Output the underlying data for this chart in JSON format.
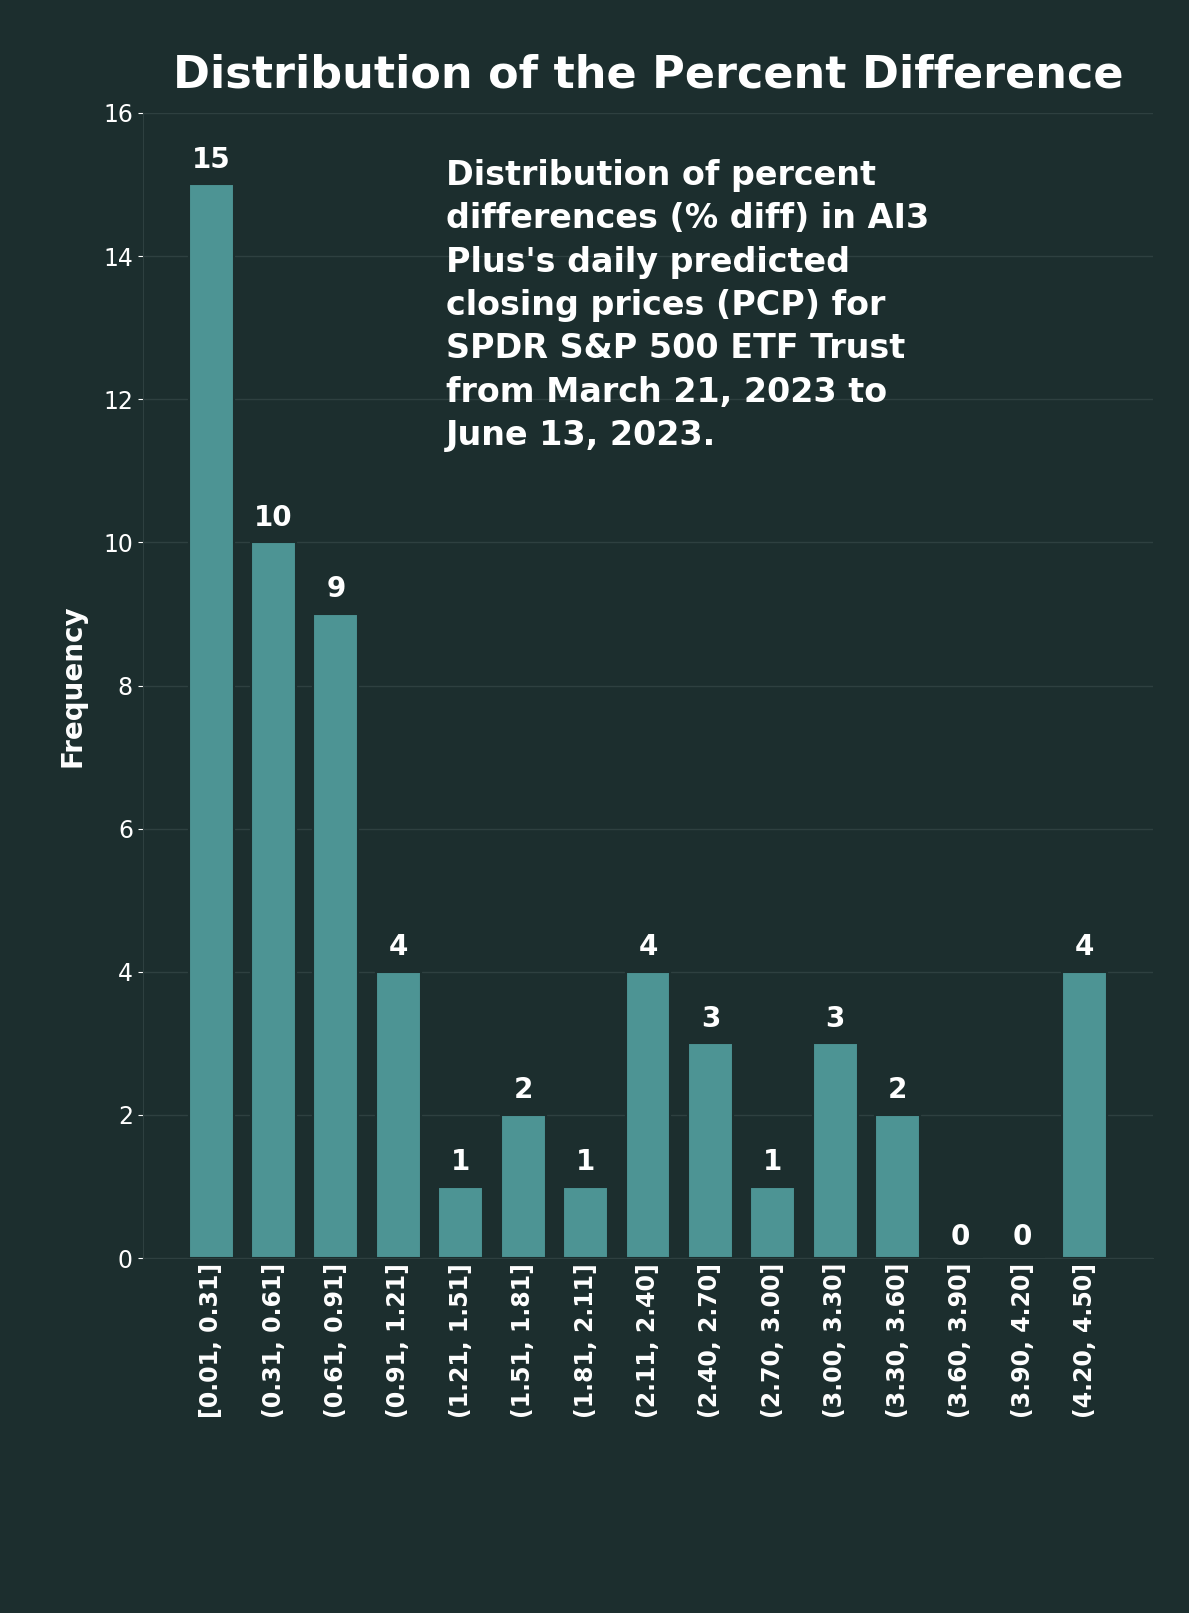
{
  "title": "Distribution of the Percent Difference",
  "ylabel": "Frequency",
  "background_color": "#1c2e2e",
  "bar_color": "#4d9494",
  "text_color": "#ffffff",
  "grid_color": "#2e4040",
  "categories": [
    "[0.01, 0.31]",
    "(0.31, 0.61]",
    "(0.61, 0.91]",
    "(0.91, 1.21]",
    "(1.21, 1.51]",
    "(1.51, 1.81]",
    "(1.81, 2.11]",
    "(2.11, 2.40]",
    "(2.40, 2.70]",
    "(2.70, 3.00]",
    "(3.00, 3.30]",
    "(3.30, 3.60]",
    "(3.60, 3.90]",
    "(3.90, 4.20]",
    "(4.20, 4.50]"
  ],
  "values": [
    15,
    10,
    9,
    4,
    1,
    2,
    1,
    4,
    3,
    1,
    3,
    2,
    0,
    0,
    4
  ],
  "ylim": [
    0,
    16
  ],
  "yticks": [
    0,
    2,
    4,
    6,
    8,
    10,
    12,
    14,
    16
  ],
  "annotation_text": "Distribution of percent\ndifferences (% diff) in AI3\nPlus's daily predicted\nclosing prices (PCP) for\nSPDR S&P 500 ETF Trust\nfrom March 21, 2023 to\nJune 13, 2023.",
  "title_fontsize": 32,
  "label_fontsize": 20,
  "tick_fontsize": 17,
  "bar_label_fontsize": 20,
  "annotation_fontsize": 24
}
